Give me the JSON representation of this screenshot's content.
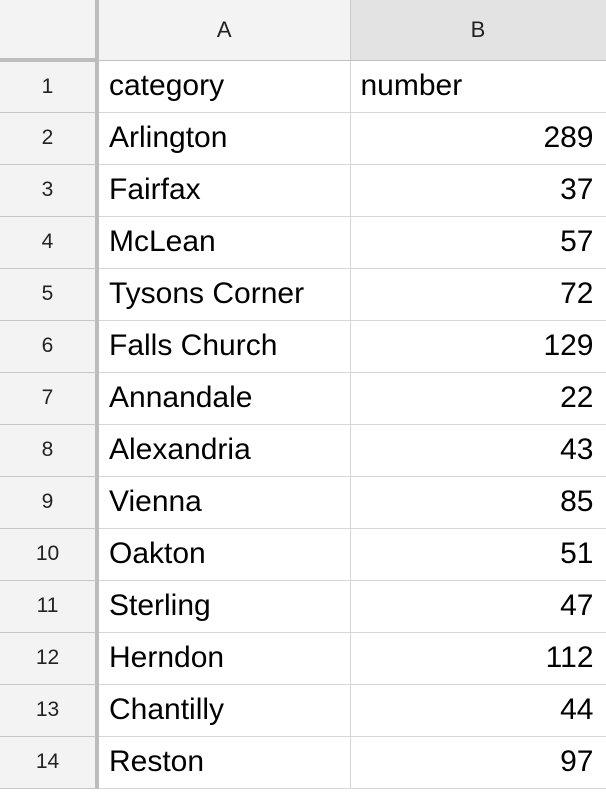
{
  "columns": {
    "a_label": "A",
    "b_label": "B"
  },
  "rows": [
    {
      "num": "1",
      "a": "category",
      "b": "number",
      "b_align": "left"
    },
    {
      "num": "2",
      "a": "Arlington",
      "b": "289",
      "b_align": "right"
    },
    {
      "num": "3",
      "a": "Fairfax",
      "b": "37",
      "b_align": "right"
    },
    {
      "num": "4",
      "a": "McLean",
      "b": "57",
      "b_align": "right"
    },
    {
      "num": "5",
      "a": "Tysons Corner",
      "b": "72",
      "b_align": "right"
    },
    {
      "num": "6",
      "a": "Falls Church",
      "b": "129",
      "b_align": "right"
    },
    {
      "num": "7",
      "a": "Annandale",
      "b": "22",
      "b_align": "right"
    },
    {
      "num": "8",
      "a": "Alexandria",
      "b": "43",
      "b_align": "right"
    },
    {
      "num": "9",
      "a": "Vienna",
      "b": "85",
      "b_align": "right"
    },
    {
      "num": "10",
      "a": "Oakton",
      "b": "51",
      "b_align": "right"
    },
    {
      "num": "11",
      "a": "Sterling",
      "b": "47",
      "b_align": "right"
    },
    {
      "num": "12",
      "a": "Herndon",
      "b": "112",
      "b_align": "right"
    },
    {
      "num": "13",
      "a": "Chantilly",
      "b": "44",
      "b_align": "right"
    },
    {
      "num": "14",
      "a": "Reston",
      "b": "97",
      "b_align": "right"
    }
  ]
}
